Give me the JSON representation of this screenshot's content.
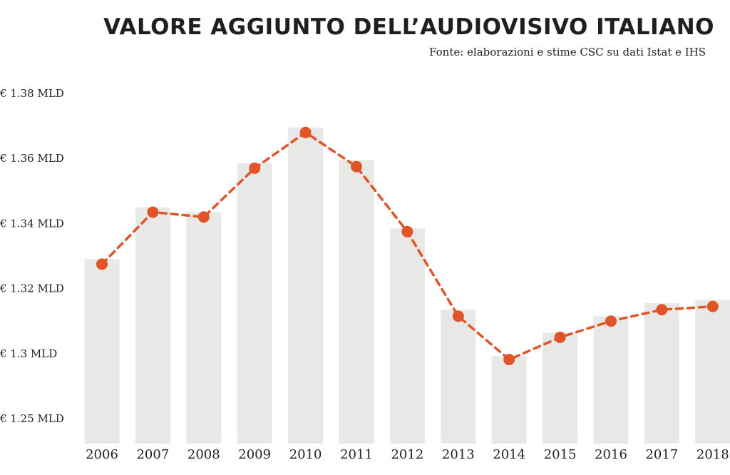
{
  "chart_data": {
    "type": "bar",
    "title": "VALORE AGGIUNTO DELL’AUDIOVISIVO ITALIANO",
    "subtitle": "Fonte: elaborazioni e stime CSC su dati Istat e IHS",
    "categories": [
      "2006",
      "2007",
      "2008",
      "2009",
      "2010",
      "2011",
      "2012",
      "2013",
      "2014",
      "2015",
      "2016",
      "2017",
      "2018"
    ],
    "y_tick_labels": [
      "€ 1.38 MLD",
      "€ 1.36 MLD",
      "€ 1.34 MLD",
      "€ 1.32 MLD",
      "€ 1.3 MLD",
      "€ 1.25 MLD"
    ],
    "series": [
      {
        "type": "bar",
        "values": [
          1.329,
          1.345,
          1.3435,
          1.3585,
          1.3695,
          1.3595,
          1.3385,
          1.3135,
          1.2975,
          1.3065,
          1.3115,
          1.3155,
          1.3165
        ]
      },
      {
        "type": "line",
        "style": "dashed-with-markers",
        "values": [
          1.3275,
          1.3435,
          1.342,
          1.357,
          1.368,
          1.3575,
          1.3375,
          1.3115,
          1.295,
          1.305,
          1.31,
          1.3135,
          1.3145
        ]
      }
    ],
    "ylim": [
      1.25,
      1.38
    ],
    "grid": false,
    "legend": "none",
    "colors": {
      "bar": "#e8e8e6",
      "line": "#e05527",
      "text": "#222222"
    }
  }
}
